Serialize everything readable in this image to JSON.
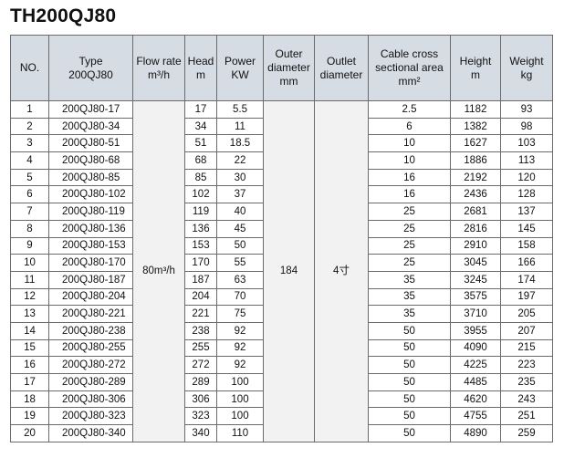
{
  "title": "TH200QJ80",
  "headers": [
    [
      "NO."
    ],
    [
      "Type",
      "200QJ80"
    ],
    [
      "Flow rate",
      "m³/h"
    ],
    [
      "Head",
      "m"
    ],
    [
      "Power",
      "KW"
    ],
    [
      "Outer",
      "diameter",
      "mm"
    ],
    [
      "Outlet",
      "diameter"
    ],
    [
      "Cable cross",
      "sectional area",
      "mm²"
    ],
    [
      "Height",
      "m"
    ],
    [
      "Weight",
      "kg"
    ]
  ],
  "shared": {
    "flow_rate": "80m³/h",
    "outer_diameter": "184",
    "outlet_diameter": "4寸"
  },
  "rows": [
    {
      "no": "1",
      "type": "200QJ80-17",
      "head": "17",
      "power": "5.5",
      "cable": "2.5",
      "height": "1182",
      "weight": "93"
    },
    {
      "no": "2",
      "type": "200QJ80-34",
      "head": "34",
      "power": "11",
      "cable": "6",
      "height": "1382",
      "weight": "98"
    },
    {
      "no": "3",
      "type": "200QJ80-51",
      "head": "51",
      "power": "18.5",
      "cable": "10",
      "height": "1627",
      "weight": "103"
    },
    {
      "no": "4",
      "type": "200QJ80-68",
      "head": "68",
      "power": "22",
      "cable": "10",
      "height": "1886",
      "weight": "113"
    },
    {
      "no": "5",
      "type": "200QJ80-85",
      "head": "85",
      "power": "30",
      "cable": "16",
      "height": "2192",
      "weight": "120"
    },
    {
      "no": "6",
      "type": "200QJ80-102",
      "head": "102",
      "power": "37",
      "cable": "16",
      "height": "2436",
      "weight": "128"
    },
    {
      "no": "7",
      "type": "200QJ80-119",
      "head": "119",
      "power": "40",
      "cable": "25",
      "height": "2681",
      "weight": "137"
    },
    {
      "no": "8",
      "type": "200QJ80-136",
      "head": "136",
      "power": "45",
      "cable": "25",
      "height": "2816",
      "weight": "145"
    },
    {
      "no": "9",
      "type": "200QJ80-153",
      "head": "153",
      "power": "50",
      "cable": "25",
      "height": "2910",
      "weight": "158"
    },
    {
      "no": "10",
      "type": "200QJ80-170",
      "head": "170",
      "power": "55",
      "cable": "25",
      "height": "3045",
      "weight": "166"
    },
    {
      "no": "11",
      "type": "200QJ80-187",
      "head": "187",
      "power": "63",
      "cable": "35",
      "height": "3245",
      "weight": "174"
    },
    {
      "no": "12",
      "type": "200QJ80-204",
      "head": "204",
      "power": "70",
      "cable": "35",
      "height": "3575",
      "weight": "197"
    },
    {
      "no": "13",
      "type": "200QJ80-221",
      "head": "221",
      "power": "75",
      "cable": "35",
      "height": "3710",
      "weight": "205"
    },
    {
      "no": "14",
      "type": "200QJ80-238",
      "head": "238",
      "power": "92",
      "cable": "50",
      "height": "3955",
      "weight": "207"
    },
    {
      "no": "15",
      "type": "200QJ80-255",
      "head": "255",
      "power": "92",
      "cable": "50",
      "height": "4090",
      "weight": "215"
    },
    {
      "no": "16",
      "type": "200QJ80-272",
      "head": "272",
      "power": "92",
      "cable": "50",
      "height": "4225",
      "weight": "223"
    },
    {
      "no": "17",
      "type": "200QJ80-289",
      "head": "289",
      "power": "100",
      "cable": "50",
      "height": "4485",
      "weight": "235"
    },
    {
      "no": "18",
      "type": "200QJ80-306",
      "head": "306",
      "power": "100",
      "cable": "50",
      "height": "4620",
      "weight": "243"
    },
    {
      "no": "19",
      "type": "200QJ80-323",
      "head": "323",
      "power": "100",
      "cable": "50",
      "height": "4755",
      "weight": "251"
    },
    {
      "no": "20",
      "type": "200QJ80-340",
      "head": "340",
      "power": "110",
      "cable": "50",
      "height": "4890",
      "weight": "259"
    }
  ]
}
